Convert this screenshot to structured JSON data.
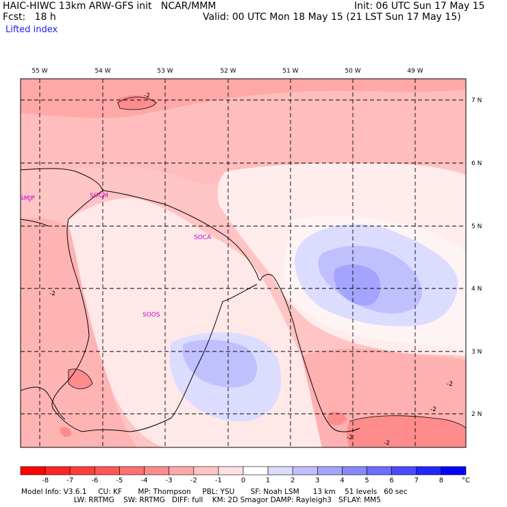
{
  "header": {
    "title_left": "HAIC-HIWC 13km ARW-GFS init   NCAR/MMM",
    "fcst": "Fcst:   18 h",
    "field": "Lifted index",
    "init": "Init: 06 UTC Sun 17 May 15",
    "valid": "Valid: 00 UTC Mon 18 May 15 (21 LST Sun 17 May 15)"
  },
  "lon_labels": [
    "55 W",
    "54 W",
    "53 W",
    "52 W",
    "51 W",
    "50 W",
    "49 W"
  ],
  "lat_labels": [
    "7 N",
    "6 N",
    "5 N",
    "4 N",
    "3 N",
    "2 N"
  ],
  "stations": [
    "SMJP",
    "SOCM",
    "SOCA",
    "SOOS"
  ],
  "contour_labels": [
    "-2",
    "-2",
    "-2",
    "-2",
    "-2",
    "-2"
  ],
  "colorbar": {
    "ticks": [
      "-8",
      "-7",
      "-6",
      "-5",
      "-4",
      "-3",
      "-2",
      "-1",
      "0",
      "1",
      "2",
      "3",
      "4",
      "5",
      "6",
      "7",
      "8"
    ],
    "unit": "°C",
    "colors": [
      "#ff0000",
      "#ff2424",
      "#ff3c3c",
      "#ff5555",
      "#ff7070",
      "#ff8c8c",
      "#ffa8a8",
      "#ffc4c4",
      "#ffe0e0",
      "#ffffff",
      "#dcdcff",
      "#c0c0ff",
      "#a4a4ff",
      "#8888ff",
      "#6c6cff",
      "#4a4aff",
      "#2424ff",
      "#0000ff"
    ]
  },
  "footer": {
    "line1": "Model Info: V3.6.1     CU: KF       MP: Thompson     PBL: YSU       SF: Noah LSM      13 km    51 levels   60 sec",
    "line2": "                       LW: RRTMG    SW: RRTMG   DIFF: full    KM: 2D Smagor DAMP: Rayleigh3   SFLAY: MM5"
  }
}
